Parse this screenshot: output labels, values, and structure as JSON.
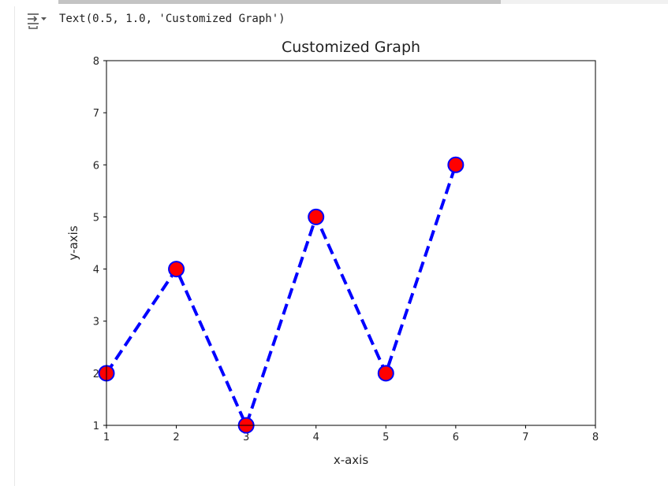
{
  "output": {
    "text": "Text(0.5, 1.0, 'Customized Graph')",
    "icon": "output-toggle-icon"
  },
  "chart_data": {
    "type": "line",
    "title": "Customized Graph",
    "xlabel": "x-axis",
    "ylabel": "y-axis",
    "x": [
      1,
      2,
      3,
      4,
      5,
      6
    ],
    "y": [
      2,
      4,
      1,
      5,
      2,
      6
    ],
    "xlim": [
      1,
      8
    ],
    "ylim": [
      1,
      8
    ],
    "xticks": [
      "1",
      "2",
      "3",
      "4",
      "5",
      "6",
      "7",
      "8"
    ],
    "yticks": [
      "1",
      "2",
      "3",
      "4",
      "5",
      "6",
      "7",
      "8"
    ],
    "grid": false,
    "line_style": "dashed",
    "line_color": "#0000ff",
    "marker": "circle",
    "marker_face_color": "#ff0000",
    "marker_edge_color": "#0000ff"
  }
}
